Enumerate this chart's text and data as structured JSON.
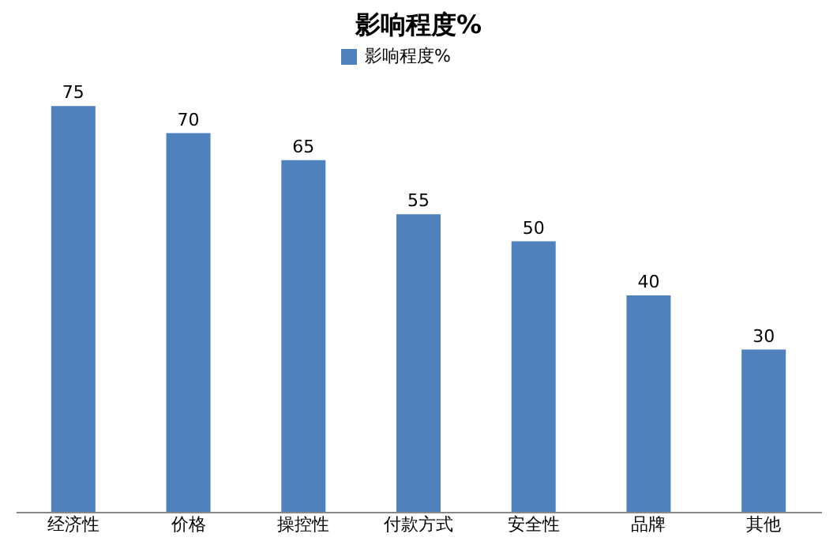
{
  "chart_data": {
    "type": "bar",
    "title": "影响程度%",
    "categories": [
      "经济性",
      "价格",
      "操控性",
      "付款方式",
      "安全性",
      "品牌",
      "其他"
    ],
    "series": [
      {
        "name": "影响程度%",
        "color": "#4f81bd",
        "values": [
          75,
          70,
          65,
          55,
          50,
          40,
          30
        ]
      }
    ],
    "data_labels": true,
    "legend": "top",
    "grid": false
  }
}
